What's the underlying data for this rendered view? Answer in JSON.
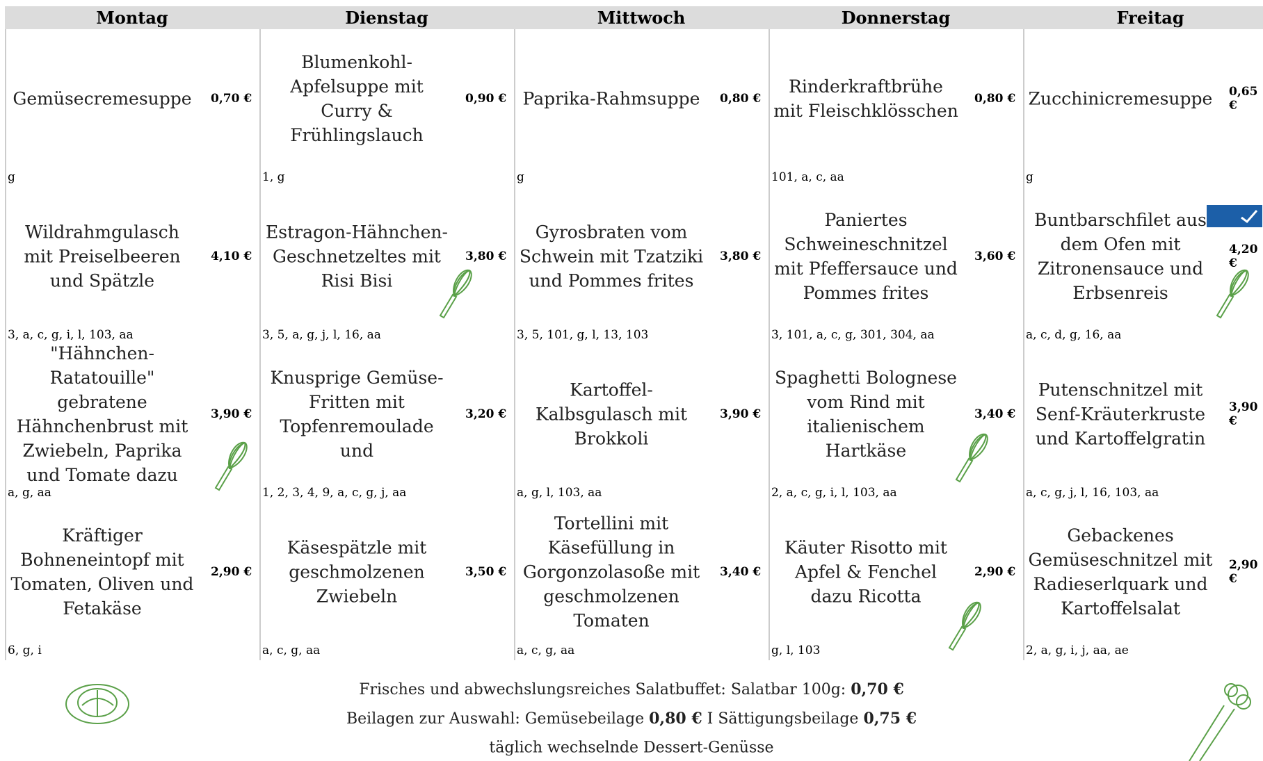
{
  "days": [
    {
      "name": "Montag",
      "dishes": [
        {
          "name": "Gemüsecremesuppe",
          "price": "0,70 €",
          "allergens": "g"
        },
        {
          "name": "Wildrahmgulasch mit Preiselbeeren und Spätzle",
          "price": "4,10 €",
          "allergens": "3, a, c, g, i, l, 103, aa"
        },
        {
          "name": "\"Hähnchen-Ratatouille\" gebratene Hähnchenbrust mit Zwiebeln, Paprika und Tomate dazu",
          "price": "3,90 €",
          "allergens": "a, g, aa"
        },
        {
          "name": "Kräftiger Bohneneintopf mit Tomaten, Oliven und Fetakäse",
          "price": "2,90 €",
          "allergens": "6, g, i"
        }
      ]
    },
    {
      "name": "Dienstag",
      "dishes": [
        {
          "name": "Blumenkohl-Apfelsuppe mit Curry & Frühlingslauch",
          "price": "0,90 €",
          "allergens": "1, g"
        },
        {
          "name": "Estragon-Hähnchen-Geschnetzeltes mit Risi Bisi",
          "price": "3,80 €",
          "allergens": "3, 5, a, g, j, l, 16, aa"
        },
        {
          "name": "Knusprige Gemüse-Fritten mit Topfenremoulade und",
          "price": "3,20 €",
          "allergens": "1, 2, 3, 4, 9, a, c, g, j, aa"
        },
        {
          "name": "Käsespätzle mit geschmolzenen Zwiebeln",
          "price": "3,50 €",
          "allergens": "a, c, g, aa"
        }
      ]
    },
    {
      "name": "Mittwoch",
      "dishes": [
        {
          "name": "Paprika-Rahmsuppe",
          "price": "0,80 €",
          "allergens": "g"
        },
        {
          "name": "Gyrosbraten vom Schwein mit Tzatziki und Pommes frites",
          "price": "3,80 €",
          "allergens": "3, 5, 101, g, l, 13, 103"
        },
        {
          "name": "Kartoffel-Kalbsgulasch mit Brokkoli",
          "price": "3,90 €",
          "allergens": "a, g, l, 103, aa"
        },
        {
          "name": "Tortellini  mit Käsefüllung in Gorgonzolasoße mit geschmolzenen Tomaten",
          "price": "3,40 €",
          "allergens": "a, c, g, aa"
        }
      ]
    },
    {
      "name": "Donnerstag",
      "dishes": [
        {
          "name": "Rinderkraftbrühe mit Fleischklösschen",
          "price": "0,80 €",
          "allergens": "101, a, c, aa"
        },
        {
          "name": "Paniertes Schweineschnitzel mit Pfeffersauce und Pommes frites",
          "price": "3,60 €",
          "allergens": "3, 101, a, c, g, 301, 304, aa"
        },
        {
          "name": "Spaghetti Bolognese vom Rind mit italienischem Hartkäse",
          "price": "3,40 €",
          "allergens": "2, a, c, g, i, l, 103, aa"
        },
        {
          "name": "Käuter Risotto mit Apfel & Fenchel dazu Ricotta",
          "price": "2,90 €",
          "allergens": "g, l, 103"
        }
      ]
    },
    {
      "name": "Freitag",
      "dishes": [
        {
          "name": "Zucchinicremesuppe",
          "price": "0,65 €",
          "allergens": "g"
        },
        {
          "name": "Buntbarschfilet aus dem Ofen mit Zitronensauce und Erbsenreis",
          "price": "4,20 €",
          "allergens": "a, c, d, g, 16, aa"
        },
        {
          "name": "Putenschnitzel mit Senf-Kräuterkruste und Kartoffelgratin",
          "price": "3,90 €",
          "allergens": "a, c, g, j, l, 16, 103, aa"
        },
        {
          "name": "Gebackenes Gemüseschnitzel mit Radieserlquark und Kartoffelsalat",
          "price": "2,90 €",
          "allergens": "2, a, g, i, j, aa, ae"
        }
      ]
    }
  ],
  "footer": {
    "lines": [
      {
        "text": "Frisches und abwechslungsreiches Salatbuffet:  Salatbar 100g:",
        "price": "0,70 €"
      },
      {
        "text": "Beilagen zur Auswahl: Gemüsebeilage",
        "price": "0,80 €",
        "text2": "I  Sättigungsbeilage",
        "price2": "0,75 €"
      },
      {
        "text": "täglich wechselnde Dessert-Genüsse"
      }
    ]
  }
}
